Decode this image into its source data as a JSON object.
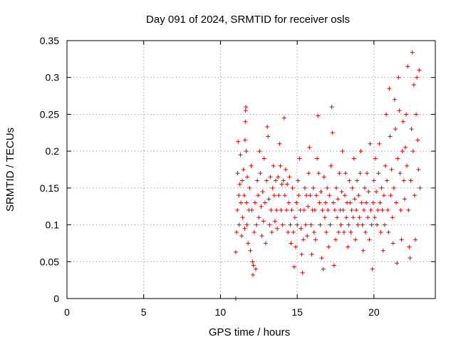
{
  "chart_data": {
    "type": "scatter",
    "title": "Day 091 of 2024, SRMTID for receiver osls",
    "xlabel": "GPS time / hours",
    "ylabel": "SRMTID / TECUs",
    "xlim": [
      0,
      24
    ],
    "ylim": [
      0,
      0.35
    ],
    "x_ticks": [
      0,
      5,
      10,
      15,
      20
    ],
    "x_tick_labels": [
      "0",
      "5",
      "10",
      "15",
      "20"
    ],
    "y_ticks": [
      0,
      0.05,
      0.1,
      0.15,
      0.2,
      0.25,
      0.3,
      0.35
    ],
    "y_tick_labels": [
      "0",
      "0.05",
      "0.1",
      "0.15",
      "0.2",
      "0.25",
      "0.3",
      "0.35"
    ],
    "grid": true,
    "marker": "plus",
    "marker_color": "#e00000",
    "series": [
      {
        "values_description_note": "",
        "points": [
          [
            11.0,
            0.0
          ],
          [
            11.0,
            0.0
          ],
          [
            11.0,
            0.063
          ],
          [
            11.05,
            0.09
          ],
          [
            11.1,
            0.12
          ],
          [
            11.12,
            0.17
          ],
          [
            11.15,
            0.213
          ],
          [
            11.2,
            0.14
          ],
          [
            11.22,
            0.1
          ],
          [
            11.25,
            0.155
          ],
          [
            11.3,
            0.195
          ],
          [
            11.33,
            0.13
          ],
          [
            11.38,
            0.085
          ],
          [
            11.42,
            0.16
          ],
          [
            11.45,
            0.11
          ],
          [
            11.5,
            0.175
          ],
          [
            11.55,
            0.14
          ],
          [
            11.58,
            0.095
          ],
          [
            11.6,
            0.215
          ],
          [
            11.62,
            0.24
          ],
          [
            11.64,
            0.255
          ],
          [
            11.66,
            0.26
          ],
          [
            11.68,
            0.2
          ],
          [
            11.7,
            0.13
          ],
          [
            11.72,
            0.1
          ],
          [
            11.75,
            0.165
          ],
          [
            11.8,
            0.075
          ],
          [
            11.85,
            0.12
          ],
          [
            11.9,
            0.15
          ],
          [
            11.95,
            0.065
          ],
          [
            12.0,
            0.18
          ],
          [
            12.05,
            0.12
          ],
          [
            12.1,
            0.05
          ],
          [
            12.12,
            0.032
          ],
          [
            12.15,
            0.045
          ],
          [
            12.2,
            0.09
          ],
          [
            12.25,
            0.13
          ],
          [
            12.3,
            0.04
          ],
          [
            12.35,
            0.1
          ],
          [
            12.4,
            0.16
          ],
          [
            12.45,
            0.14
          ],
          [
            12.5,
            0.11
          ],
          [
            12.55,
            0.2
          ],
          [
            12.6,
            0.17
          ],
          [
            12.65,
            0.125
          ],
          [
            12.7,
            0.085
          ],
          [
            12.75,
            0.145
          ],
          [
            12.8,
            0.105
          ],
          [
            12.85,
            0.19
          ],
          [
            12.9,
            0.13
          ],
          [
            12.95,
            0.075
          ],
          [
            13.0,
            0.16
          ],
          [
            13.05,
            0.233
          ],
          [
            13.1,
            0.22
          ],
          [
            13.15,
            0.135
          ],
          [
            13.2,
            0.1
          ],
          [
            13.25,
            0.165
          ],
          [
            13.3,
            0.12
          ],
          [
            13.35,
            0.09
          ],
          [
            13.4,
            0.15
          ],
          [
            13.45,
            0.18
          ],
          [
            13.5,
            0.14
          ],
          [
            13.55,
            0.105
          ],
          [
            13.6,
            0.16
          ],
          [
            13.65,
            0.12
          ],
          [
            13.7,
            0.095
          ],
          [
            13.75,
            0.165
          ],
          [
            13.8,
            0.14
          ],
          [
            13.85,
            0.21
          ],
          [
            13.9,
            0.18
          ],
          [
            13.95,
            0.12
          ],
          [
            14.0,
            0.155
          ],
          [
            14.05,
            0.1
          ],
          [
            14.1,
            0.16
          ],
          [
            14.15,
            0.245
          ],
          [
            14.2,
            0.14
          ],
          [
            14.25,
            0.175
          ],
          [
            14.3,
            0.12
          ],
          [
            14.35,
            0.155
          ],
          [
            14.4,
            0.09
          ],
          [
            14.45,
            0.13
          ],
          [
            14.5,
            0.165
          ],
          [
            14.55,
            0.1
          ],
          [
            14.6,
            0.075
          ],
          [
            14.65,
            0.12
          ],
          [
            14.7,
            0.15
          ],
          [
            14.75,
            0.09
          ],
          [
            14.8,
            0.043
          ],
          [
            14.85,
            0.11
          ],
          [
            14.9,
            0.07
          ],
          [
            14.95,
            0.13
          ],
          [
            15.0,
            0.1
          ],
          [
            15.05,
            0.16
          ],
          [
            15.1,
            0.14
          ],
          [
            15.15,
            0.19
          ],
          [
            15.2,
            0.12
          ],
          [
            15.25,
            0.095
          ],
          [
            15.3,
            0.06
          ],
          [
            15.35,
            0.035
          ],
          [
            15.4,
            0.08
          ],
          [
            15.45,
            0.12
          ],
          [
            15.5,
            0.15
          ],
          [
            15.55,
            0.1
          ],
          [
            15.6,
            0.14
          ],
          [
            15.65,
            0.085
          ],
          [
            15.7,
            0.125
          ],
          [
            15.75,
            0.17
          ],
          [
            15.8,
            0.205
          ],
          [
            15.85,
            0.14
          ],
          [
            15.9,
            0.1
          ],
          [
            15.95,
            0.06
          ],
          [
            16.0,
            0.12
          ],
          [
            16.05,
            0.15
          ],
          [
            16.1,
            0.09
          ],
          [
            16.15,
            0.12
          ],
          [
            16.2,
            0.08
          ],
          [
            16.25,
            0.14
          ],
          [
            16.3,
            0.19
          ],
          [
            16.35,
            0.248
          ],
          [
            16.4,
            0.17
          ],
          [
            16.45,
            0.13
          ],
          [
            16.5,
            0.1
          ],
          [
            16.55,
            0.145
          ],
          [
            16.6,
            0.055
          ],
          [
            16.65,
            0.12
          ],
          [
            16.7,
            0.04
          ],
          [
            16.75,
            0.165
          ],
          [
            16.8,
            0.11
          ],
          [
            16.85,
            0.13
          ],
          [
            16.9,
            0.09
          ],
          [
            16.95,
            0.15
          ],
          [
            17.0,
            0.12
          ],
          [
            17.05,
            0.07
          ],
          [
            17.1,
            0.14
          ],
          [
            17.15,
            0.1
          ],
          [
            17.2,
            0.18
          ],
          [
            17.25,
            0.26
          ],
          [
            17.3,
            0.225
          ],
          [
            17.35,
            0.13
          ],
          [
            17.4,
            0.045
          ],
          [
            17.45,
            0.12
          ],
          [
            17.5,
            0.08
          ],
          [
            17.55,
            0.15
          ],
          [
            17.6,
            0.11
          ],
          [
            17.65,
            0.135
          ],
          [
            17.7,
            0.09
          ],
          [
            17.75,
            0.17
          ],
          [
            17.8,
            0.12
          ],
          [
            17.85,
            0.1
          ],
          [
            17.9,
            0.145
          ],
          [
            17.95,
            0.2
          ],
          [
            18.0,
            0.12
          ],
          [
            18.05,
            0.09
          ],
          [
            18.1,
            0.14
          ],
          [
            18.15,
            0.17
          ],
          [
            18.2,
            0.11
          ],
          [
            18.25,
            0.13
          ],
          [
            18.3,
            0.07
          ],
          [
            18.35,
            0.1
          ],
          [
            18.4,
            0.16
          ],
          [
            18.45,
            0.13
          ],
          [
            18.5,
            0.09
          ],
          [
            18.55,
            0.12
          ],
          [
            18.6,
            0.15
          ],
          [
            18.65,
            0.11
          ],
          [
            18.7,
            0.19
          ],
          [
            18.75,
            0.135
          ],
          [
            18.8,
            0.08
          ],
          [
            18.85,
            0.12
          ],
          [
            18.9,
            0.16
          ],
          [
            18.95,
            0.1
          ],
          [
            19.0,
            0.14
          ],
          [
            19.05,
            0.11
          ],
          [
            19.1,
            0.17
          ],
          [
            19.15,
            0.2
          ],
          [
            19.2,
            0.13
          ],
          [
            19.25,
            0.1
          ],
          [
            19.3,
            0.065
          ],
          [
            19.35,
            0.12
          ],
          [
            19.4,
            0.15
          ],
          [
            19.45,
            0.09
          ],
          [
            19.5,
            0.13
          ],
          [
            19.55,
            0.17
          ],
          [
            19.6,
            0.11
          ],
          [
            19.65,
            0.145
          ],
          [
            19.7,
            0.08
          ],
          [
            19.75,
            0.21
          ],
          [
            19.8,
            0.12
          ],
          [
            19.85,
            0.1
          ],
          [
            19.9,
            0.04
          ],
          [
            19.95,
            0.13
          ],
          [
            20.0,
            0.16
          ],
          [
            20.05,
            0.11
          ],
          [
            20.1,
            0.19
          ],
          [
            20.15,
            0.145
          ],
          [
            20.2,
            0.1
          ],
          [
            20.25,
            0.12
          ],
          [
            20.3,
            0.17
          ],
          [
            20.35,
            0.21
          ],
          [
            20.4,
            0.13
          ],
          [
            20.45,
            0.09
          ],
          [
            20.5,
            0.15
          ],
          [
            20.55,
            0.12
          ],
          [
            20.6,
            0.065
          ],
          [
            20.65,
            0.14
          ],
          [
            20.7,
            0.1
          ],
          [
            20.75,
            0.18
          ],
          [
            20.8,
            0.25
          ],
          [
            20.85,
            0.16
          ],
          [
            20.9,
            0.12
          ],
          [
            20.95,
            0.09
          ],
          [
            21.0,
            0.285
          ],
          [
            21.05,
            0.22
          ],
          [
            21.1,
            0.14
          ],
          [
            21.15,
            0.175
          ],
          [
            21.2,
            0.11
          ],
          [
            21.25,
            0.075
          ],
          [
            21.3,
            0.15
          ],
          [
            21.35,
            0.27
          ],
          [
            21.4,
            0.23
          ],
          [
            21.45,
            0.13
          ],
          [
            21.5,
            0.048
          ],
          [
            21.55,
            0.19
          ],
          [
            21.6,
            0.3
          ],
          [
            21.65,
            0.255
          ],
          [
            21.7,
            0.17
          ],
          [
            21.75,
            0.12
          ],
          [
            21.8,
            0.08
          ],
          [
            21.85,
            0.2
          ],
          [
            21.9,
            0.24
          ],
          [
            21.95,
            0.16
          ],
          [
            22.0,
            0.135
          ],
          [
            22.05,
            0.205
          ],
          [
            22.1,
            0.25
          ],
          [
            22.15,
            0.18
          ],
          [
            22.2,
            0.315
          ],
          [
            22.25,
            0.12
          ],
          [
            22.3,
            0.07
          ],
          [
            22.35,
            0.055
          ],
          [
            22.4,
            0.16
          ],
          [
            22.45,
            0.23
          ],
          [
            22.5,
            0.334
          ],
          [
            22.55,
            0.2
          ],
          [
            22.6,
            0.29
          ],
          [
            22.65,
            0.14
          ],
          [
            22.7,
            0.08
          ],
          [
            22.75,
            0.25
          ],
          [
            22.8,
            0.3
          ],
          [
            22.85,
            0.215
          ],
          [
            22.9,
            0.175
          ],
          [
            22.95,
            0.31
          ],
          [
            23.0,
            0.15
          ]
        ]
      }
    ]
  }
}
